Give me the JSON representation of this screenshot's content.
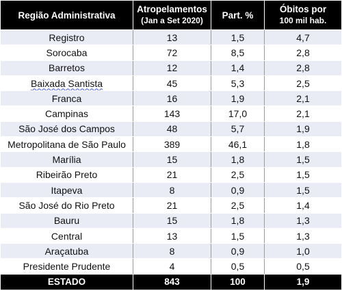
{
  "table": {
    "headers": {
      "region": "Região Administrativa",
      "accidents_line1": "Atropelamentos",
      "accidents_line2": "(Jan a Set 2020)",
      "share": "Part. %",
      "deaths_line1": "Óbitos por",
      "deaths_line2": "100 mil hab."
    },
    "rows": [
      {
        "region": "Registro",
        "accidents": "13",
        "share": "1,5",
        "deaths": "4,7"
      },
      {
        "region": "Sorocaba",
        "accidents": "72",
        "share": "8,5",
        "deaths": "2,8"
      },
      {
        "region": "Barretos",
        "accidents": "12",
        "share": "1,4",
        "deaths": "2,8"
      },
      {
        "region": "Baixada Santista",
        "accidents": "45",
        "share": "5,3",
        "deaths": "2,5"
      },
      {
        "region": "Franca",
        "accidents": "16",
        "share": "1,9",
        "deaths": "2,1"
      },
      {
        "region": "Campinas",
        "accidents": "143",
        "share": "17,0",
        "deaths": "2,1"
      },
      {
        "region": "São José dos Campos",
        "accidents": "48",
        "share": "5,7",
        "deaths": "1,9"
      },
      {
        "region": "Metropolitana de São Paulo",
        "accidents": "389",
        "share": "46,1",
        "deaths": "1,8"
      },
      {
        "region": "Marília",
        "accidents": "15",
        "share": "1,8",
        "deaths": "1,5"
      },
      {
        "region": "Ribeirão Preto",
        "accidents": "21",
        "share": "2,5",
        "deaths": "1,5"
      },
      {
        "region": "Itapeva",
        "accidents": "8",
        "share": "0,9",
        "deaths": "1,5"
      },
      {
        "region": "São José do Rio Preto",
        "accidents": "21",
        "share": "2,5",
        "deaths": "1,4"
      },
      {
        "region": "Bauru",
        "accidents": "15",
        "share": "1,8",
        "deaths": "1,3"
      },
      {
        "region": "Central",
        "accidents": "13",
        "share": "1,5",
        "deaths": "1,3"
      },
      {
        "region": "Araçatuba",
        "accidents": "8",
        "share": "0,9",
        "deaths": "1,0"
      },
      {
        "region": "Presidente Prudente",
        "accidents": "4",
        "share": "0,5",
        "deaths": "0,5"
      }
    ],
    "total": {
      "region": "ESTADO",
      "accidents": "843",
      "share": "100",
      "deaths": "1,9"
    }
  }
}
